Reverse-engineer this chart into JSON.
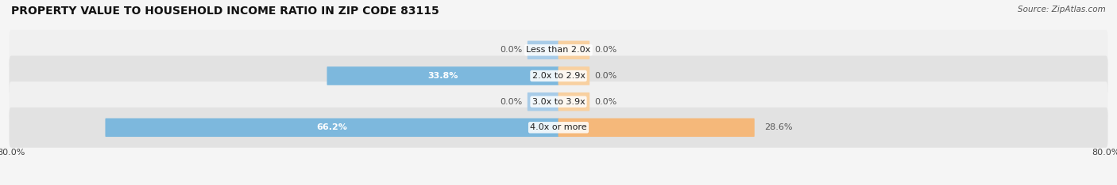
{
  "title": "PROPERTY VALUE TO HOUSEHOLD INCOME RATIO IN ZIP CODE 83115",
  "source": "Source: ZipAtlas.com",
  "categories": [
    "Less than 2.0x",
    "2.0x to 2.9x",
    "3.0x to 3.9x",
    "4.0x or more"
  ],
  "without_mortgage": [
    0.0,
    33.8,
    0.0,
    66.2
  ],
  "with_mortgage": [
    0.0,
    0.0,
    0.0,
    28.6
  ],
  "xlim_left": -80,
  "xlim_right": 80,
  "xtick_left_label": "80.0%",
  "xtick_right_label": "80.0%",
  "color_without": "#7db8dd",
  "color_with": "#f5b87a",
  "color_without_small": "#a8cce8",
  "color_with_small": "#f8d0a0",
  "row_bg_light": "#f0f0f0",
  "row_bg_dark": "#e2e2e2",
  "label_color_outside": "#555555",
  "title_fontsize": 10,
  "source_fontsize": 7.5,
  "label_fontsize": 8,
  "cat_fontsize": 8,
  "small_bar_width": 4.5,
  "bar_height": 0.62
}
